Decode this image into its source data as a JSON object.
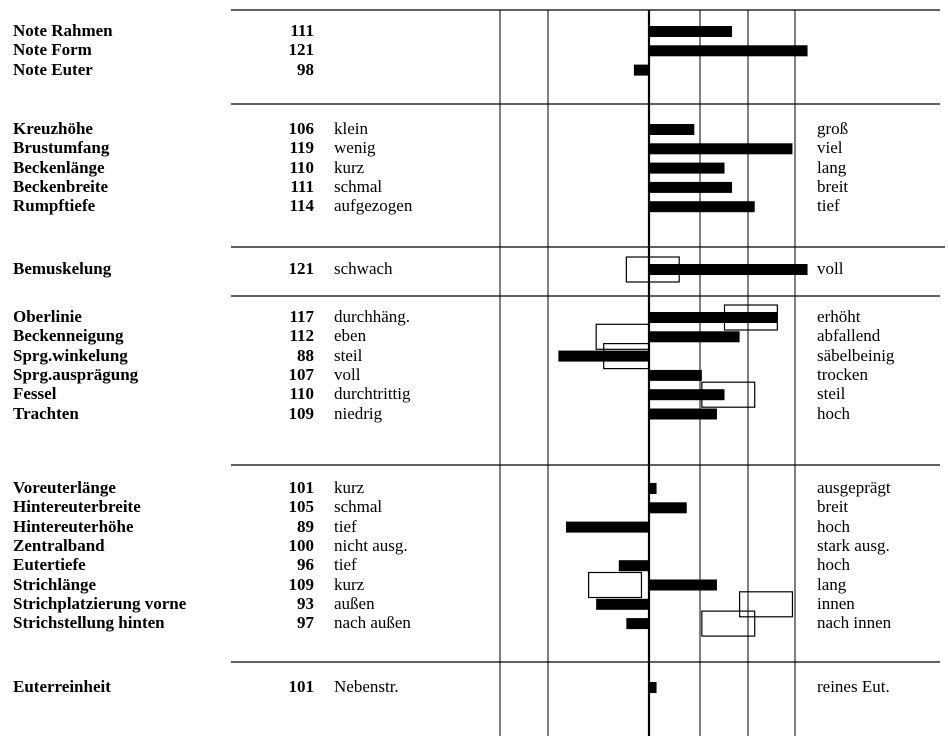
{
  "chart_data": {
    "type": "bar",
    "title": "",
    "xlabel": "",
    "ylabel": "",
    "baseline": 100,
    "xlim": [
      76,
      124
    ],
    "grid": true,
    "groups": [
      {
        "rows": [
          {
            "trait": "Note Rahmen",
            "value": 111,
            "low": "",
            "high": ""
          },
          {
            "trait": "Note Form",
            "value": 121,
            "low": "",
            "high": ""
          },
          {
            "trait": "Note Euter",
            "value": 98,
            "low": "",
            "high": ""
          }
        ]
      },
      {
        "rows": [
          {
            "trait": "Kreuzhöhe",
            "value": 106,
            "low": "klein",
            "high": "groß"
          },
          {
            "trait": "Brustumfang",
            "value": 119,
            "low": "wenig",
            "high": "viel"
          },
          {
            "trait": "Beckenlänge",
            "value": 110,
            "low": "kurz",
            "high": "lang"
          },
          {
            "trait": "Beckenbreite",
            "value": 111,
            "low": "schmal",
            "high": "breit"
          },
          {
            "trait": "Rumpftiefe",
            "value": 114,
            "low": "aufgezogen",
            "high": "tief"
          }
        ]
      },
      {
        "rows": [
          {
            "trait": "Bemuskelung",
            "value": 121,
            "low": "schwach",
            "high": "voll",
            "box": [
              97,
              104
            ]
          }
        ]
      },
      {
        "rows": [
          {
            "trait": "Oberlinie",
            "value": 117,
            "low": "durchhäng.",
            "high": "erhöht",
            "box": [
              110,
              117
            ]
          },
          {
            "trait": "Beckenneigung",
            "value": 112,
            "low": "eben",
            "high": "abfallend",
            "box": [
              93,
              100
            ]
          },
          {
            "trait": "Sprg.winkelung",
            "value": 88,
            "low": "steil",
            "high": "säbelbeinig",
            "box": [
              94,
              100
            ]
          },
          {
            "trait": "Sprg.ausprägung",
            "value": 107,
            "low": "voll",
            "high": "trocken"
          },
          {
            "trait": "Fessel",
            "value": 110,
            "low": "durchtrittig",
            "high": "steil",
            "box": [
              107,
              114
            ]
          },
          {
            "trait": "Trachten",
            "value": 109,
            "low": "niedrig",
            "high": "hoch"
          }
        ]
      },
      {
        "rows": [
          {
            "trait": "Voreuterlänge",
            "value": 101,
            "low": "kurz",
            "high": "ausgeprägt"
          },
          {
            "trait": "Hintereuterbreite",
            "value": 105,
            "low": "schmal",
            "high": "breit"
          },
          {
            "trait": "Hintereuterhöhe",
            "value": 89,
            "low": "tief",
            "high": "hoch"
          },
          {
            "trait": "Zentralband",
            "value": 100,
            "low": "nicht ausg.",
            "high": "stark ausg."
          },
          {
            "trait": "Eutertiefe",
            "value": 96,
            "low": "tief",
            "high": "hoch"
          },
          {
            "trait": "Strichlänge",
            "value": 109,
            "low": "kurz",
            "high": "lang",
            "box": [
              92,
              99
            ]
          },
          {
            "trait": "Strichplatzierung vorne",
            "value": 93,
            "low": "außen",
            "high": "innen",
            "box": [
              112,
              119
            ]
          },
          {
            "trait": "Strichstellung hinten",
            "value": 97,
            "low": "nach außen",
            "high": "nach innen",
            "box": [
              107,
              114
            ]
          }
        ]
      },
      {
        "rows": [
          {
            "trait": "Euterreinheit",
            "value": 101,
            "low": "Nebenstr.",
            "high": "reines Eut."
          }
        ]
      }
    ]
  }
}
